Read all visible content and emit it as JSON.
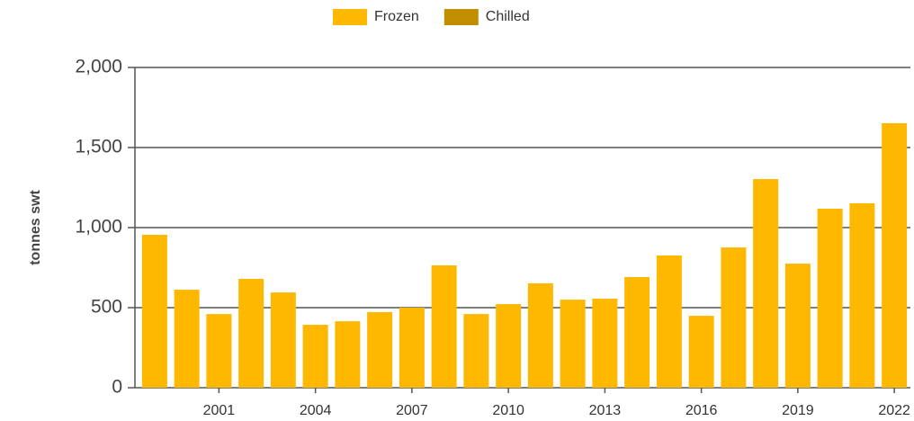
{
  "chart_data": {
    "type": "bar",
    "stacked": true,
    "y_label": "tonnes swt",
    "categories": [
      null,
      null,
      "2001",
      null,
      null,
      "2004",
      null,
      null,
      "2007",
      null,
      null,
      "2010",
      null,
      null,
      "2013",
      null,
      null,
      "2016",
      null,
      null,
      "2019",
      null,
      null,
      "2022"
    ],
    "series": [
      {
        "name": "Frozen",
        "color": "#ffb800",
        "values": [
          955,
          612,
          460,
          680,
          595,
          393,
          415,
          472,
          500,
          764,
          460,
          522,
          652,
          550,
          556,
          691,
          826,
          449,
          876,
          1303,
          775,
          1118,
          1152,
          1652
        ]
      },
      {
        "name": "Chilled",
        "color": "#c08e00",
        "values": [
          0,
          0,
          0,
          0,
          0,
          0,
          0,
          0,
          0,
          0,
          0,
          0,
          0,
          0,
          0,
          0,
          0,
          0,
          0,
          0,
          0,
          0,
          0,
          0
        ]
      }
    ],
    "ylim": [
      0,
      2000
    ],
    "yticks": [
      0,
      500,
      {
        "value": 1000,
        "label": "1,000"
      },
      {
        "value": 1500,
        "label": "1,500"
      },
      {
        "value": 2000,
        "label": "2,000"
      }
    ],
    "grid": true,
    "legend": "top"
  }
}
